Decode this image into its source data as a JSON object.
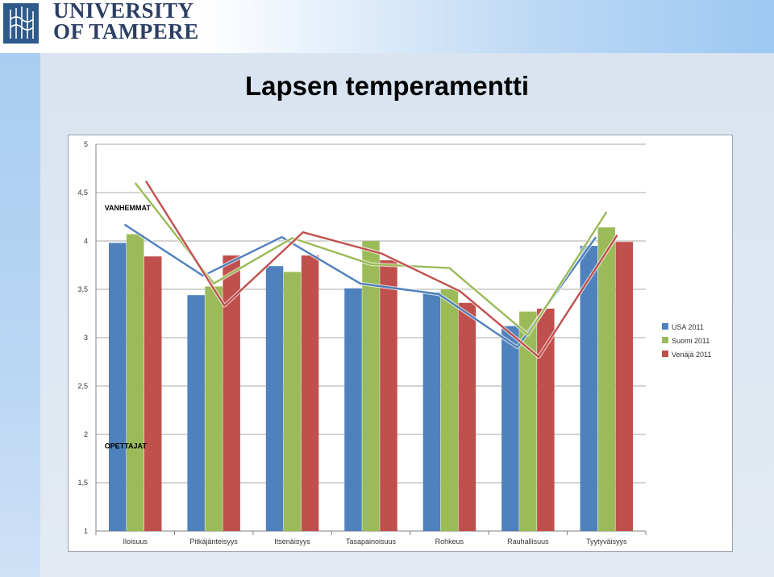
{
  "header": {
    "logo_line1": "UNIVERSITY",
    "logo_line2": "OF TAMPERE"
  },
  "slide": {
    "title": "Lapsen temperamentti"
  },
  "colors": {
    "usa": "#4f81bd",
    "suomi": "#9bbb59",
    "venaja": "#c0504d",
    "logo_blue": "#2e5a8c",
    "logo_text": "#2c3e63"
  },
  "chart_data": {
    "type": "bar",
    "categories": [
      "Iloisuus",
      "Pitkäjänteisyys",
      "Itsenäisyys",
      "Tasapainoisuus",
      "Rohkeus",
      "Rauhallisuus",
      "Tyytyväisyys"
    ],
    "ylim": [
      1,
      5
    ],
    "yticks": [
      "1",
      "1,5",
      "2",
      "2,5",
      "3",
      "3,5",
      "4",
      "4,5",
      "5"
    ],
    "ytick_values": [
      1,
      1.5,
      2,
      2.5,
      3,
      3.5,
      4,
      4.5,
      5
    ],
    "grid": true,
    "legend_position": "right",
    "series": [
      {
        "name": "USA 2011",
        "color": "#4f81bd",
        "values": [
          3.98,
          3.44,
          3.74,
          3.51,
          3.47,
          3.12,
          3.95
        ]
      },
      {
        "name": "Suomi 2011",
        "color": "#9bbb59",
        "values": [
          4.07,
          3.53,
          3.68,
          4.0,
          3.5,
          3.27,
          4.14
        ]
      },
      {
        "name": "Venäjä 2011",
        "color": "#c0504d",
        "values": [
          3.84,
          3.85,
          3.85,
          3.8,
          3.36,
          3.3,
          3.99
        ]
      }
    ],
    "overlay_lines": [
      {
        "name": "USA 2011",
        "color": "#4f81bd",
        "values": [
          4.17,
          3.64,
          4.04,
          3.56,
          3.45,
          2.9,
          4.04
        ]
      },
      {
        "name": "Suomi 2011",
        "color": "#9bbb59",
        "values": [
          4.6,
          3.56,
          4.03,
          3.76,
          3.72,
          3.03,
          4.3
        ]
      },
      {
        "name": "Venäjä 2011",
        "color": "#c0504d",
        "values": [
          4.62,
          3.33,
          4.09,
          3.87,
          3.48,
          2.8,
          4.06
        ]
      }
    ],
    "annotations": [
      {
        "text": "VANHEMMAT",
        "x_category": 0,
        "y": 4.34
      },
      {
        "text": "OPETTAJAT",
        "x_category": 0,
        "y": 1.88
      }
    ]
  }
}
